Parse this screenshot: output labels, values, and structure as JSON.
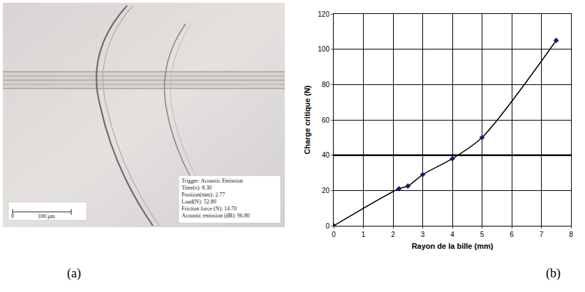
{
  "image_panel": {
    "label": "(a)",
    "overlay_lines": [
      "Trigger: Acoustic Emission",
      "Time(s): 8.30",
      "Position(mm): 2.77",
      "Load(N): 52.80",
      "Friction force (N): 14.70",
      "Acoustic emission (dB): 96.80"
    ],
    "scale_bar": {
      "start": "0",
      "end": "100 µm"
    }
  },
  "chart_panel_label": "(b)",
  "chart_data": {
    "type": "line",
    "marker": "diamond",
    "color": "#1a1a66",
    "x_label": "Rayon de la bille (mm)",
    "y_label": "Charge critique (N)",
    "x": [
      0,
      2.2,
      2.5,
      3,
      4,
      5,
      7.5
    ],
    "values": [
      0,
      21,
      22.5,
      29,
      38,
      50,
      105
    ],
    "reference_y": 40,
    "xlim": [
      0,
      8
    ],
    "xticks": [
      0,
      1,
      2,
      3,
      4,
      5,
      6,
      7,
      8
    ],
    "ylim": [
      0,
      120
    ],
    "yticks": [
      0,
      20,
      40,
      60,
      80,
      100,
      120
    ],
    "grid": true
  }
}
